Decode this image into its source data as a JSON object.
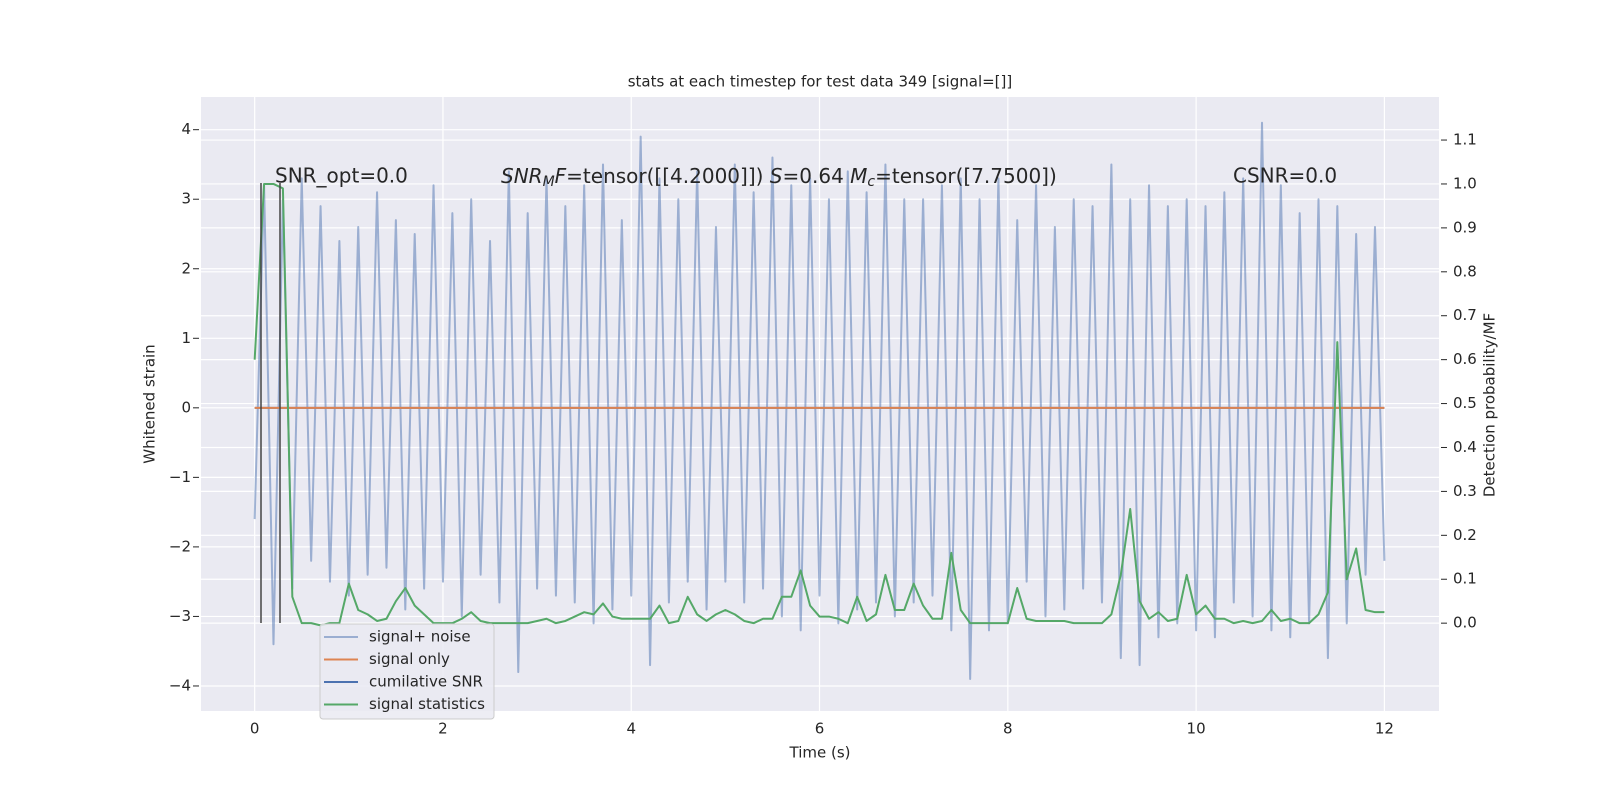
{
  "chart_data": {
    "type": "line",
    "title": "stats at each timestep for test data 349 [signal=[]]",
    "x_label": "Time (s)",
    "y_label": "Whitened strain",
    "y2_label": "Detection probability/MF",
    "annotations": {
      "snr_opt": "SNR_opt=0.0",
      "mf_parts": [
        "SNR",
        "M",
        "F",
        "=tensor([[4.2000]])  ",
        "S",
        "=0.64  ",
        "M",
        "c",
        "=tensor([7.7500])"
      ],
      "csnr": "CSNR=0.0"
    },
    "x": [
      0.0,
      0.1,
      0.2,
      0.3,
      0.4,
      0.5,
      0.6,
      0.7,
      0.8,
      0.9,
      1.0,
      1.1,
      1.2,
      1.3,
      1.4,
      1.5,
      1.6,
      1.7,
      1.8,
      1.9,
      2.0,
      2.1,
      2.2,
      2.3,
      2.4,
      2.5,
      2.6,
      2.7,
      2.8,
      2.9,
      3.0,
      3.1,
      3.2,
      3.3,
      3.4,
      3.5,
      3.6,
      3.7,
      3.8,
      3.9,
      4.0,
      4.1,
      4.2,
      4.3,
      4.4,
      4.5,
      4.6,
      4.7,
      4.8,
      4.9,
      5.0,
      5.1,
      5.2,
      5.3,
      5.4,
      5.5,
      5.6,
      5.7,
      5.8,
      5.9,
      6.0,
      6.1,
      6.2,
      6.3,
      6.4,
      6.5,
      6.6,
      6.7,
      6.8,
      6.9,
      7.0,
      7.1,
      7.2,
      7.3,
      7.4,
      7.5,
      7.6,
      7.7,
      7.8,
      7.9,
      8.0,
      8.1,
      8.2,
      8.3,
      8.4,
      8.5,
      8.6,
      8.7,
      8.8,
      8.9,
      9.0,
      9.1,
      9.2,
      9.3,
      9.4,
      9.5,
      9.6,
      9.7,
      9.8,
      9.9,
      10.0,
      10.1,
      10.2,
      10.3,
      10.4,
      10.5,
      10.6,
      10.7,
      10.8,
      10.9,
      11.0,
      11.1,
      11.2,
      11.3,
      11.4,
      11.5,
      11.6,
      11.7,
      11.8,
      11.9,
      12.0
    ],
    "series": [
      {
        "name": "signal+ noise",
        "color": "#4c72b0",
        "alpha": 0.5,
        "values": [
          -1.6,
          3.2,
          -3.4,
          3.0,
          -2.6,
          3.3,
          -2.2,
          2.9,
          -2.5,
          2.4,
          -2.7,
          2.6,
          -2.4,
          3.1,
          -2.3,
          2.7,
          -2.9,
          2.5,
          -2.6,
          3.2,
          -2.5,
          2.8,
          -3.0,
          3.0,
          -2.4,
          2.4,
          -2.8,
          3.4,
          -3.8,
          2.8,
          -2.6,
          3.3,
          -2.7,
          2.9,
          -2.8,
          3.2,
          -3.1,
          3.5,
          -2.9,
          2.7,
          -2.7,
          3.9,
          -3.7,
          3.3,
          -2.8,
          3.0,
          -2.5,
          3.4,
          -2.9,
          2.6,
          -2.5,
          3.5,
          -2.8,
          3.1,
          -2.6,
          3.6,
          -3.0,
          3.2,
          -3.2,
          3.3,
          -2.7,
          3.0,
          -3.1,
          3.4,
          -2.9,
          3.1,
          -2.8,
          3.5,
          -3.0,
          3.0,
          -2.8,
          3.0,
          -2.7,
          3.2,
          -3.2,
          3.3,
          -3.9,
          3.0,
          -3.2,
          3.3,
          -3.1,
          2.7,
          -2.5,
          3.2,
          -3.0,
          2.6,
          -2.9,
          3.0,
          -2.6,
          2.9,
          -2.8,
          3.5,
          -3.6,
          3.0,
          -3.7,
          3.2,
          -3.3,
          2.9,
          -3.1,
          3.0,
          -3.2,
          2.9,
          -3.3,
          3.1,
          -2.8,
          3.3,
          -3.0,
          4.1,
          -3.2,
          3.2,
          -3.3,
          2.8,
          -3.1,
          3.0,
          -3.6,
          2.9,
          -3.1,
          2.5,
          -2.4,
          2.6,
          -2.2
        ]
      },
      {
        "name": "signal only",
        "color": "#dd8452",
        "x": [
          0,
          12
        ],
        "values": [
          0,
          0
        ]
      },
      {
        "name": "cumilative SNR",
        "color": "#4c72b0",
        "x": [
          0,
          12
        ],
        "values": [
          0,
          0
        ]
      },
      {
        "name": "signal statistics",
        "color": "#55a868",
        "axis": "y2",
        "values": [
          0.6,
          1.0,
          1.0,
          0.99,
          0.06,
          0.0,
          0.0,
          -0.005,
          0.0,
          0.0,
          0.09,
          0.03,
          0.02,
          0.005,
          0.01,
          0.05,
          0.08,
          0.04,
          0.02,
          0.0,
          0.0,
          0.0,
          0.01,
          0.025,
          0.005,
          0.0,
          0.0,
          0.0,
          0.0,
          0.0,
          0.005,
          0.01,
          0.0,
          0.005,
          0.015,
          0.025,
          0.02,
          0.045,
          0.015,
          0.01,
          0.01,
          0.01,
          0.01,
          0.04,
          0.0,
          0.005,
          0.06,
          0.02,
          0.005,
          0.02,
          0.03,
          0.02,
          0.005,
          0.0,
          0.01,
          0.01,
          0.06,
          0.06,
          0.12,
          0.04,
          0.015,
          0.015,
          0.01,
          0.0,
          0.06,
          0.005,
          0.02,
          0.11,
          0.03,
          0.03,
          0.09,
          0.04,
          0.01,
          0.01,
          0.16,
          0.03,
          0.0,
          0.0,
          0.0,
          0.0,
          0.0,
          0.08,
          0.01,
          0.005,
          0.005,
          0.005,
          0.005,
          0.0,
          0.0,
          0.0,
          0.0,
          0.02,
          0.11,
          0.26,
          0.05,
          0.01,
          0.025,
          0.005,
          0.01,
          0.11,
          0.02,
          0.04,
          0.01,
          0.01,
          0.0,
          0.005,
          0.0,
          0.005,
          0.03,
          0.005,
          0.01,
          0.0,
          0.0,
          0.02,
          0.07,
          0.64,
          0.1,
          0.17,
          0.03,
          0.025,
          0.025
        ]
      }
    ],
    "xlim": [
      -0.57,
      12.58
    ],
    "xticks": [
      0,
      2,
      4,
      6,
      8,
      10,
      12
    ],
    "ylim": [
      -4.36,
      4.47
    ],
    "yticks": [
      {
        "value": -4,
        "label": "−4"
      },
      {
        "value": -3,
        "label": "−3"
      },
      {
        "value": -2,
        "label": "−2"
      },
      {
        "value": -1,
        "label": "−1"
      },
      0,
      1,
      2,
      3,
      4
    ],
    "y2lim": [
      -0.2,
      1.198
    ],
    "y2ticks": [
      {
        "value": 0,
        "label": "0.0"
      },
      {
        "value": 0.1,
        "label": "0.1"
      },
      {
        "value": 0.2,
        "label": "0.2"
      },
      {
        "value": 0.3,
        "label": "0.3"
      },
      {
        "value": 0.4,
        "label": "0.4"
      },
      {
        "value": 0.5,
        "label": "0.5"
      },
      {
        "value": 0.6,
        "label": "0.6"
      },
      {
        "value": 0.7,
        "label": "0.7"
      },
      {
        "value": 0.8,
        "label": "0.8"
      },
      {
        "value": 0.9,
        "label": "0.9"
      },
      {
        "value": 1.0,
        "label": "1.0"
      },
      {
        "value": 1.1,
        "label": "1.1"
      }
    ],
    "grid": true,
    "legend": "lower left"
  }
}
